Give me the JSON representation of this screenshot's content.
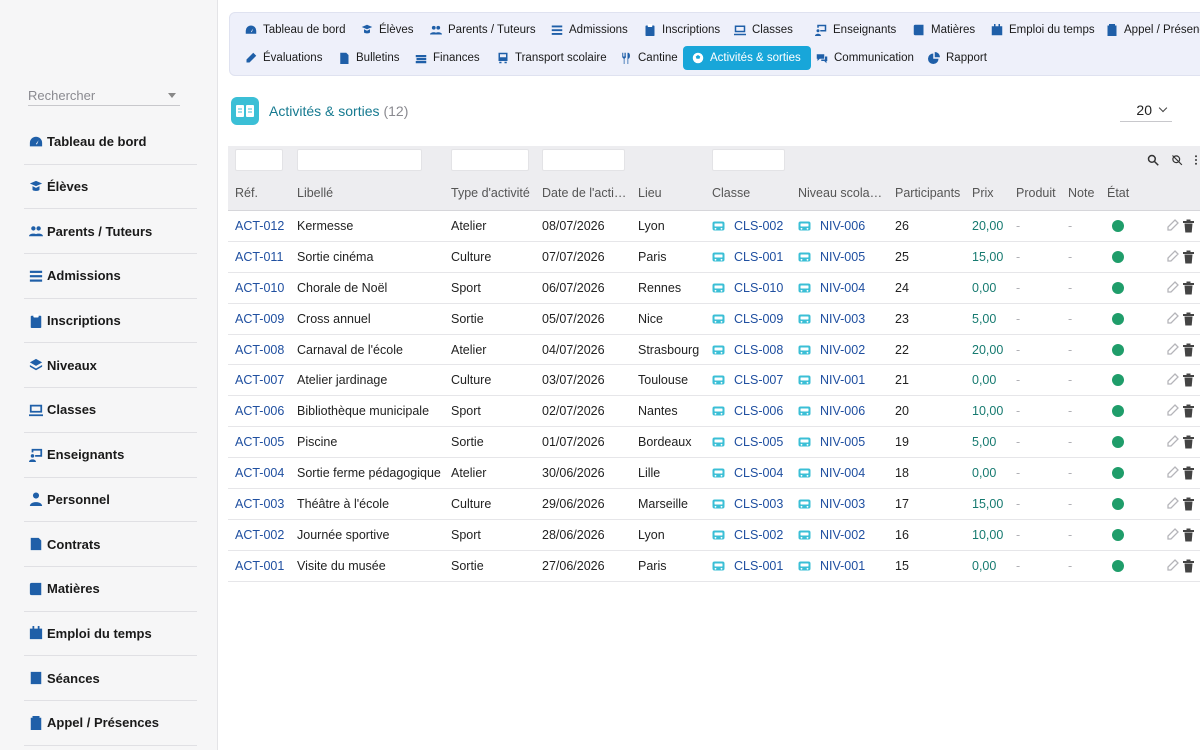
{
  "colors": {
    "accent": "#18a6d9",
    "nav_icon": "#1f5fa8",
    "status_active": "#1f9d6a",
    "title": "#167a90"
  },
  "search": {
    "placeholder": "Rechercher"
  },
  "sidebar": {
    "items": [
      {
        "label": "Tableau de bord",
        "icon": "dashboard-icon"
      },
      {
        "label": "Élèves",
        "icon": "student-icon"
      },
      {
        "label": "Parents / Tuteurs",
        "icon": "users-icon"
      },
      {
        "label": "Admissions",
        "icon": "list-icon"
      },
      {
        "label": "Inscriptions",
        "icon": "clipboard-icon"
      },
      {
        "label": "Niveaux",
        "icon": "layers-icon"
      },
      {
        "label": "Classes",
        "icon": "monitor-icon"
      },
      {
        "label": "Enseignants",
        "icon": "teacher-icon"
      },
      {
        "label": "Personnel",
        "icon": "person-icon"
      },
      {
        "label": "Contrats",
        "icon": "contract-icon"
      },
      {
        "label": "Matières",
        "icon": "book-icon"
      },
      {
        "label": "Emploi du temps",
        "icon": "calendar-icon"
      },
      {
        "label": "Séances",
        "icon": "session-icon"
      },
      {
        "label": "Appel / Présences",
        "icon": "attendance-icon"
      }
    ]
  },
  "topnav": {
    "row1": [
      {
        "label": "Tableau de bord",
        "icon": "dashboard-icon"
      },
      {
        "label": "Élèves",
        "icon": "student-icon"
      },
      {
        "label": "Parents / Tuteurs",
        "icon": "users-icon"
      },
      {
        "label": "Admissions",
        "icon": "list-icon"
      },
      {
        "label": "Inscriptions",
        "icon": "clipboard-icon"
      },
      {
        "label": "Classes",
        "icon": "monitor-icon"
      },
      {
        "label": "Enseignants",
        "icon": "teacher-icon"
      },
      {
        "label": "Matières",
        "icon": "book-icon"
      },
      {
        "label": "Emploi du temps",
        "icon": "calendar-icon"
      },
      {
        "label": "Appel / Présence",
        "icon": "attendance-icon"
      }
    ],
    "row2": [
      {
        "label": "Évaluations",
        "icon": "pencil-icon"
      },
      {
        "label": "Bulletins",
        "icon": "report-card-icon"
      },
      {
        "label": "Finances",
        "icon": "money-icon"
      },
      {
        "label": "Transport scolaire",
        "icon": "bus-icon"
      },
      {
        "label": "Cantine",
        "icon": "cutlery-icon"
      },
      {
        "label": "Activités & sorties",
        "icon": "football-icon",
        "active": true
      },
      {
        "label": "Communication",
        "icon": "chat-icon"
      },
      {
        "label": "Rapport",
        "icon": "pie-chart-icon"
      }
    ]
  },
  "page": {
    "title": "Activités & sorties",
    "count": "(12)",
    "page_size": "20"
  },
  "table": {
    "columns": [
      "Réf.",
      "Libellé",
      "Type d'activité",
      "Date de l'acti…",
      "Lieu",
      "Classe",
      "Niveau scola…",
      "Participants",
      "Prix",
      "Produit",
      "Note",
      "État"
    ],
    "rows": [
      {
        "ref": "ACT-012",
        "libelle": "Kermesse",
        "type": "Atelier",
        "date": "08/07/2026",
        "lieu": "Lyon",
        "classe": "CLS-002",
        "niveau": "NIV-006",
        "participants": "26",
        "prix": "20,00",
        "produit": "-",
        "note": "-",
        "etat": "active"
      },
      {
        "ref": "ACT-011",
        "libelle": "Sortie cinéma",
        "type": "Culture",
        "date": "07/07/2026",
        "lieu": "Paris",
        "classe": "CLS-001",
        "niveau": "NIV-005",
        "participants": "25",
        "prix": "15,00",
        "produit": "-",
        "note": "-",
        "etat": "active"
      },
      {
        "ref": "ACT-010",
        "libelle": "Chorale de Noël",
        "type": "Sport",
        "date": "06/07/2026",
        "lieu": "Rennes",
        "classe": "CLS-010",
        "niveau": "NIV-004",
        "participants": "24",
        "prix": "0,00",
        "produit": "-",
        "note": "-",
        "etat": "active"
      },
      {
        "ref": "ACT-009",
        "libelle": "Cross annuel",
        "type": "Sortie",
        "date": "05/07/2026",
        "lieu": "Nice",
        "classe": "CLS-009",
        "niveau": "NIV-003",
        "participants": "23",
        "prix": "5,00",
        "produit": "-",
        "note": "-",
        "etat": "active"
      },
      {
        "ref": "ACT-008",
        "libelle": "Carnaval de l'école",
        "type": "Atelier",
        "date": "04/07/2026",
        "lieu": "Strasbourg",
        "classe": "CLS-008",
        "niveau": "NIV-002",
        "participants": "22",
        "prix": "20,00",
        "produit": "-",
        "note": "-",
        "etat": "active"
      },
      {
        "ref": "ACT-007",
        "libelle": "Atelier jardinage",
        "type": "Culture",
        "date": "03/07/2026",
        "lieu": "Toulouse",
        "classe": "CLS-007",
        "niveau": "NIV-001",
        "participants": "21",
        "prix": "0,00",
        "produit": "-",
        "note": "-",
        "etat": "active"
      },
      {
        "ref": "ACT-006",
        "libelle": "Bibliothèque municipale",
        "type": "Sport",
        "date": "02/07/2026",
        "lieu": "Nantes",
        "classe": "CLS-006",
        "niveau": "NIV-006",
        "participants": "20",
        "prix": "10,00",
        "produit": "-",
        "note": "-",
        "etat": "active"
      },
      {
        "ref": "ACT-005",
        "libelle": "Piscine",
        "type": "Sortie",
        "date": "01/07/2026",
        "lieu": "Bordeaux",
        "classe": "CLS-005",
        "niveau": "NIV-005",
        "participants": "19",
        "prix": "5,00",
        "produit": "-",
        "note": "-",
        "etat": "active"
      },
      {
        "ref": "ACT-004",
        "libelle": "Sortie ferme pédagogique",
        "type": "Atelier",
        "date": "30/06/2026",
        "lieu": "Lille",
        "classe": "CLS-004",
        "niveau": "NIV-004",
        "participants": "18",
        "prix": "0,00",
        "produit": "-",
        "note": "-",
        "etat": "active"
      },
      {
        "ref": "ACT-003",
        "libelle": "Théâtre à l'école",
        "type": "Culture",
        "date": "29/06/2026",
        "lieu": "Marseille",
        "classe": "CLS-003",
        "niveau": "NIV-003",
        "participants": "17",
        "prix": "15,00",
        "produit": "-",
        "note": "-",
        "etat": "active"
      },
      {
        "ref": "ACT-002",
        "libelle": "Journée sportive",
        "type": "Sport",
        "date": "28/06/2026",
        "lieu": "Lyon",
        "classe": "CLS-002",
        "niveau": "NIV-002",
        "participants": "16",
        "prix": "10,00",
        "produit": "-",
        "note": "-",
        "etat": "active"
      },
      {
        "ref": "ACT-001",
        "libelle": "Visite du musée",
        "type": "Sortie",
        "date": "27/06/2026",
        "lieu": "Paris",
        "classe": "CLS-001",
        "niveau": "NIV-001",
        "participants": "15",
        "prix": "0,00",
        "produit": "-",
        "note": "-",
        "etat": "active"
      }
    ]
  }
}
